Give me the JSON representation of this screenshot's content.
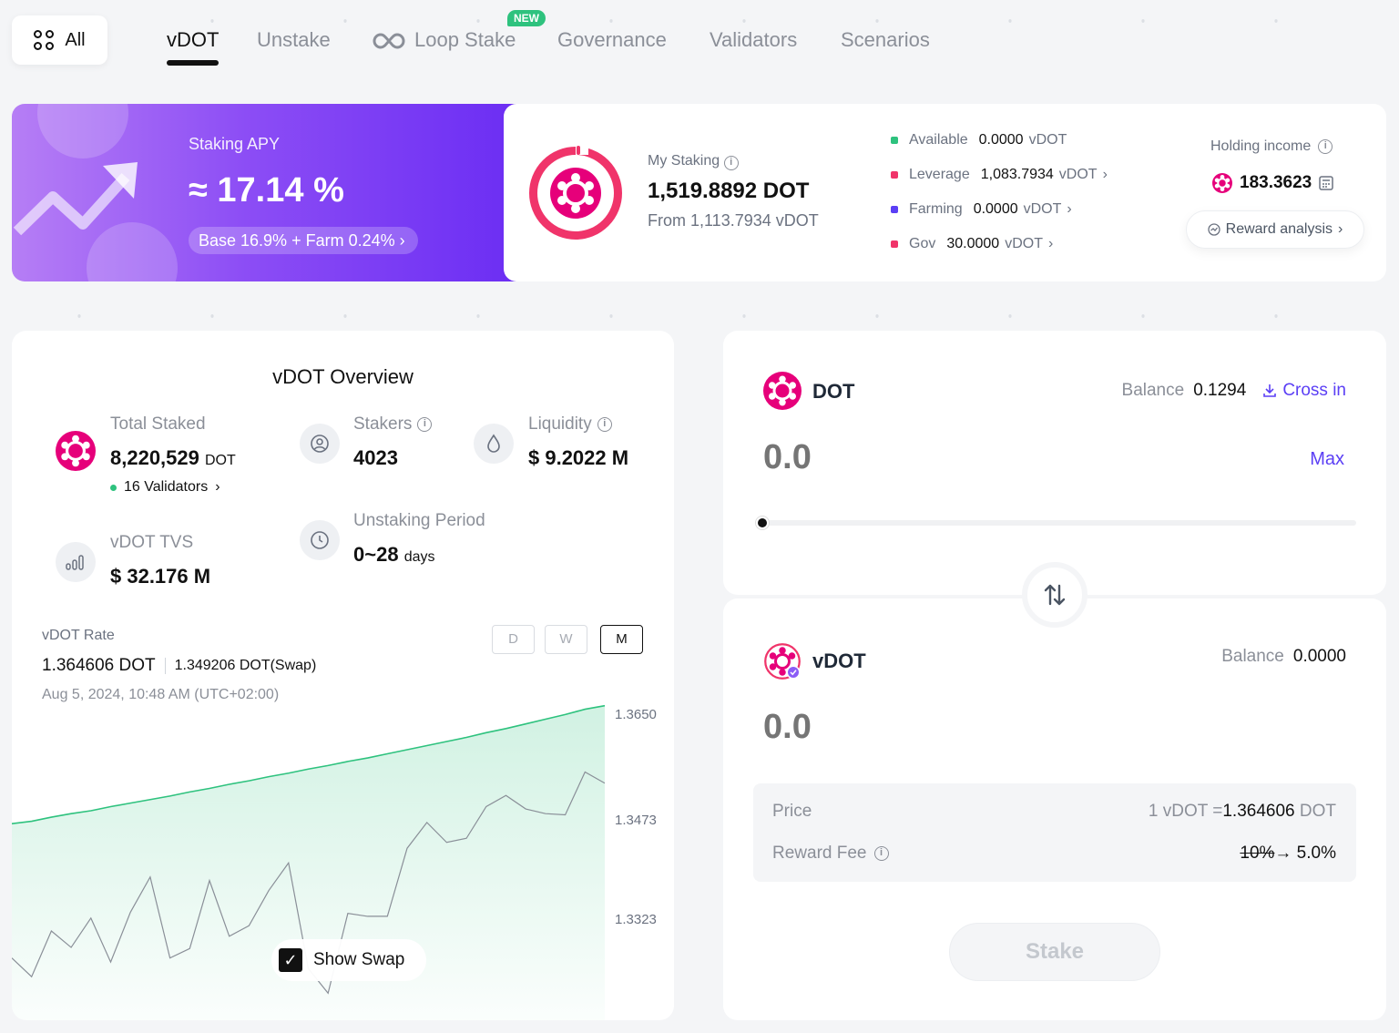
{
  "nav": {
    "all_label": "All",
    "tabs": [
      {
        "label": "vDOT"
      },
      {
        "label": "Unstake"
      },
      {
        "label": "Loop Stake"
      },
      {
        "label": "Governance"
      },
      {
        "label": "Validators"
      },
      {
        "label": "Scenarios"
      }
    ],
    "new_badge": "NEW"
  },
  "apy": {
    "label": "Staking APY",
    "value": "≈ 17.14 %",
    "breakdown": "Base 16.9% + Farm 0.24% ›"
  },
  "my_staking": {
    "label": "My Staking",
    "value": "1,519.8892 DOT",
    "from": "From 1,113.7934 vDOT",
    "breakdown": [
      {
        "label": "Available",
        "value": "0.0000",
        "unit": "vDOT",
        "arrow": "",
        "color": "#2ec27e"
      },
      {
        "label": "Leverage",
        "value": "1,083.7934",
        "unit": "vDOT",
        "arrow": "›",
        "color": "#f0346a"
      },
      {
        "label": "Farming",
        "value": "0.0000",
        "unit": "vDOT",
        "arrow": "›",
        "color": "#5b3ff5"
      },
      {
        "label": "Gov",
        "value": "30.0000",
        "unit": "vDOT",
        "arrow": "›",
        "color": "#f0346a"
      }
    ],
    "holding_label": "Holding income",
    "holding_value": "183.3623",
    "reward_btn": "Reward analysis"
  },
  "overview": {
    "title": "vDOT Overview",
    "total_staked_label": "Total Staked",
    "total_staked_value": "8,220,529",
    "total_staked_unit": "DOT",
    "validators": "16 Validators",
    "stakers_label": "Stakers",
    "stakers_value": "4023",
    "liquidity_label": "Liquidity",
    "liquidity_value": "$ 9.2022 M",
    "tvs_label": "vDOT TVS",
    "tvs_value": "$ 32.176 M",
    "period_label": "Unstaking Period",
    "period_value": "0~28",
    "period_unit": "days",
    "rate_label": "vDOT Rate",
    "rate_value": "1.364606 DOT",
    "rate_swap": "1.349206 DOT(Swap)",
    "rate_date": "Aug 5, 2024, 10:48 AM (UTC+02:00)",
    "periods": [
      "D",
      "W",
      "M"
    ],
    "active_period": "M",
    "show_swap": "Show Swap"
  },
  "chart_data": {
    "type": "line",
    "yticks": [
      "1.3650",
      "1.3473",
      "1.3323"
    ],
    "ylim": [
      1.315,
      1.365
    ],
    "series": [
      {
        "color": "#2ec27e",
        "values": [
          1.3451,
          1.3455,
          1.3462,
          1.3468,
          1.3473,
          1.348,
          1.3486,
          1.3492,
          1.3498,
          1.3505,
          1.3511,
          1.3518,
          1.3524,
          1.3531,
          1.3537,
          1.3544,
          1.355,
          1.3557,
          1.3563,
          1.357,
          1.3577,
          1.3584,
          1.3591,
          1.3598,
          1.3606,
          1.3613,
          1.3621,
          1.3629,
          1.3637,
          1.3646,
          1.3652
        ]
      },
      {
        "color": "#8a8f98",
        "values": [
          1.3222,
          1.319,
          1.3268,
          1.324,
          1.329,
          1.3215,
          1.33,
          1.336,
          1.3222,
          1.3238,
          1.3354,
          1.3259,
          1.3277,
          1.3337,
          1.3384,
          1.3204,
          1.3162,
          1.3298,
          1.3293,
          1.3293,
          1.3409,
          1.3453,
          1.3419,
          1.3426,
          1.348,
          1.3499,
          1.3476,
          1.3468,
          1.3466,
          1.3539,
          1.352
        ]
      }
    ]
  },
  "swap": {
    "from_token": "DOT",
    "from_balance_label": "Balance",
    "from_balance": "0.1294",
    "cross_in": "Cross in",
    "from_amount": "0.0",
    "max": "Max",
    "to_token": "vDOT",
    "to_balance_label": "Balance",
    "to_balance": "0.0000",
    "to_amount": "0.0",
    "price_label": "Price",
    "price_pre": "1 vDOT =",
    "price_value": "1.364606",
    "price_unit": "DOT",
    "fee_label": "Reward Fee",
    "fee_old": "10%",
    "fee_new": "→ 5.0%",
    "stake_btn": "Stake"
  }
}
